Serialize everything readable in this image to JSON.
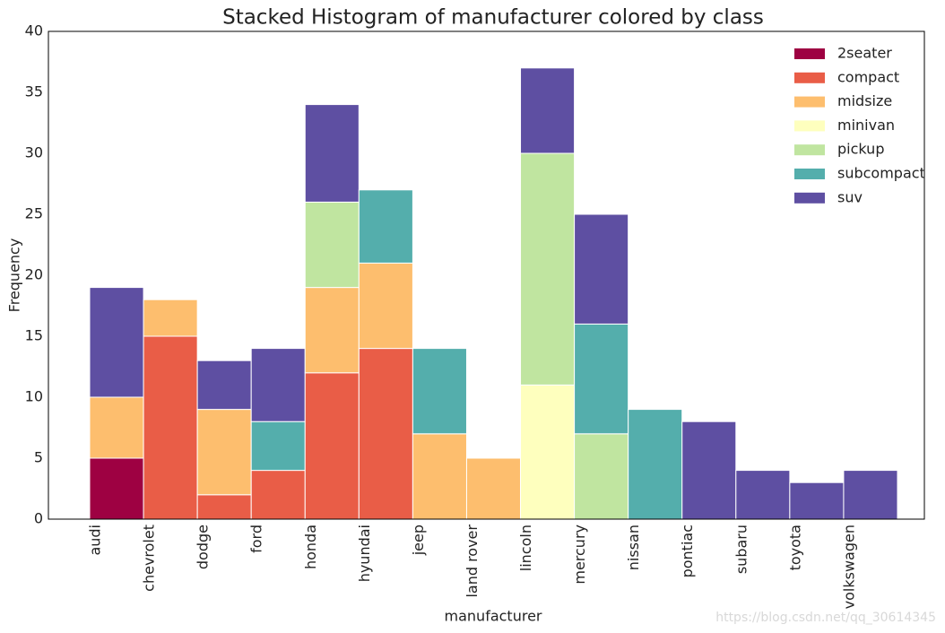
{
  "chart_data": {
    "type": "bar",
    "stacked": true,
    "title": "Stacked Histogram of manufacturer colored by class",
    "x_label": "manufacturer",
    "y_label": "Frequency",
    "watermark": "https://blog.csdn.net/qq_30614345",
    "categories": [
      "audi",
      "chevrolet",
      "dodge",
      "ford",
      "honda",
      "hyundai",
      "jeep",
      "land rover",
      "lincoln",
      "mercury",
      "nissan",
      "pontiac",
      "subaru",
      "toyota",
      "volkswagen"
    ],
    "series": [
      {
        "name": "2seater",
        "color": "#9e0142",
        "values": [
          5,
          0,
          0,
          0,
          0,
          0,
          0,
          0,
          0,
          0,
          0,
          0,
          0,
          0,
          0
        ]
      },
      {
        "name": "compact",
        "color": "#e95d47",
        "values": [
          0,
          15,
          2,
          4,
          12,
          14,
          0,
          0,
          0,
          0,
          0,
          0,
          0,
          0,
          0
        ]
      },
      {
        "name": "midsize",
        "color": "#fdbe6e",
        "values": [
          5,
          3,
          7,
          0,
          7,
          7,
          7,
          5,
          0,
          0,
          0,
          0,
          0,
          0,
          0
        ]
      },
      {
        "name": "minivan",
        "color": "#feffbe",
        "values": [
          0,
          0,
          0,
          0,
          0,
          0,
          0,
          0,
          11,
          0,
          0,
          0,
          0,
          0,
          0
        ]
      },
      {
        "name": "pickup",
        "color": "#c0e5a0",
        "values": [
          0,
          0,
          0,
          0,
          7,
          0,
          0,
          0,
          19,
          7,
          0,
          0,
          0,
          0,
          0
        ]
      },
      {
        "name": "subcompact",
        "color": "#54aeac",
        "values": [
          0,
          0,
          0,
          4,
          0,
          6,
          7,
          0,
          0,
          9,
          9,
          0,
          0,
          0,
          0
        ]
      },
      {
        "name": "suv",
        "color": "#5e4fa2",
        "values": [
          9,
          0,
          4,
          6,
          8,
          0,
          0,
          0,
          7,
          9,
          0,
          8,
          4,
          3,
          4
        ]
      }
    ],
    "ylim": [
      0,
      40
    ],
    "yticks": [
      0,
      5,
      10,
      15,
      20,
      25,
      30,
      35,
      40
    ],
    "grid": false,
    "legend": "upper right"
  }
}
